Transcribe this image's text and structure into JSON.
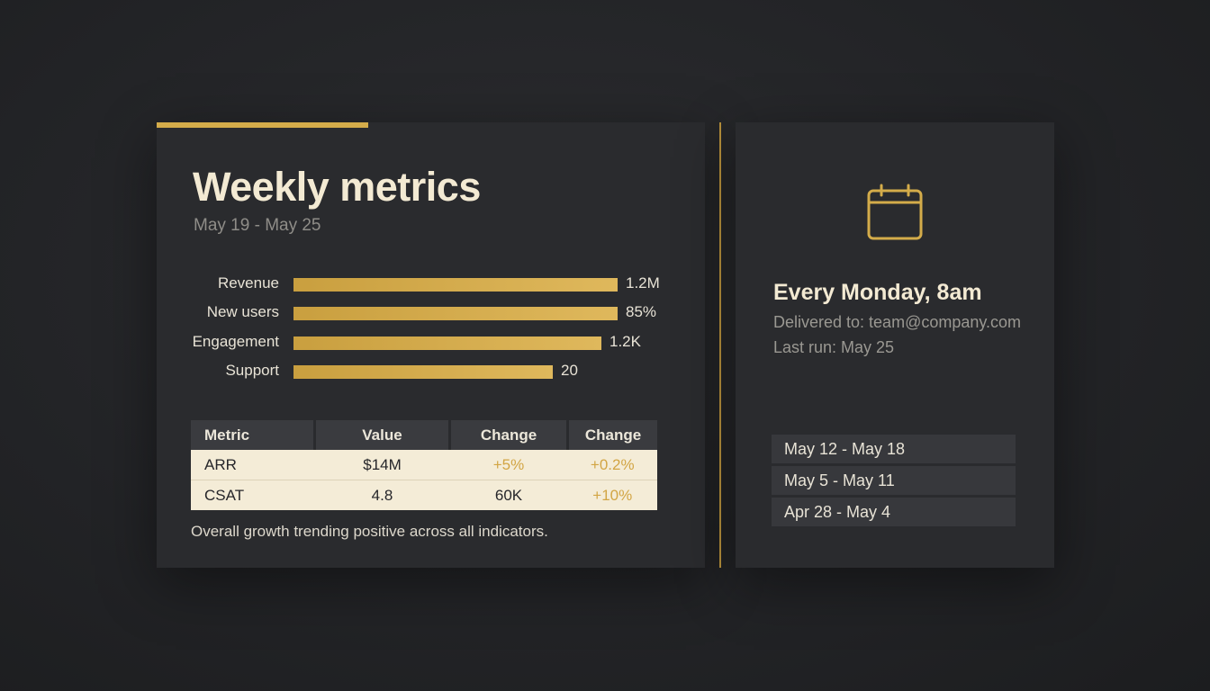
{
  "report": {
    "title": "Weekly metrics",
    "date_range": "May 19 - May 25",
    "footnote": "Overall growth trending positive across all indicators."
  },
  "chart_data": {
    "type": "bar",
    "orientation": "horizontal",
    "categories": [
      "Revenue",
      "New users",
      "Engagement",
      "Support"
    ],
    "value_labels": [
      "1.2M",
      "85%",
      "1.2K",
      "20"
    ],
    "relative_lengths": [
      1.0,
      1.0,
      0.95,
      0.8
    ],
    "bar_color": "#d4ac4a"
  },
  "table": {
    "headers": [
      "Metric",
      "Value",
      "Change",
      "Change"
    ],
    "rows": [
      [
        "ARR",
        "$14M",
        "+5%",
        "+0.2%"
      ],
      [
        "CSAT",
        "4.8",
        "60K",
        "+10%"
      ]
    ]
  },
  "schedule": {
    "icon": "calendar-icon",
    "title": "Every Monday, 8am",
    "delivered_to": "Delivered to: team@company.com",
    "last_run": "Last run: May 25"
  },
  "history": [
    "May 12 - May 18",
    "May 5 - May 11",
    "Apr 28 - May 4"
  ],
  "colors": {
    "accent": "#d4ac4a",
    "positive_change": "#d2a544",
    "card_background": "#2a2b2e",
    "table_row_background": "#f4ecd7"
  }
}
